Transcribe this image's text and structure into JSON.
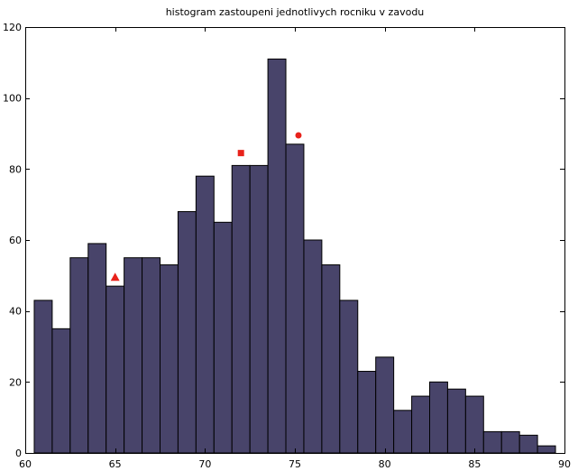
{
  "chart_data": {
    "type": "bar",
    "title": "histogram zastoupeni jednotlivych rocniku v zavodu",
    "xlabel": "",
    "ylabel": "",
    "xlim": [
      60,
      90
    ],
    "ylim": [
      0,
      120
    ],
    "xticks": [
      60,
      65,
      70,
      75,
      80,
      85,
      90
    ],
    "yticks": [
      0,
      20,
      40,
      60,
      80,
      100,
      120
    ],
    "grid": false,
    "bin_start": 60.5,
    "bin_width": 1,
    "bins": [
      {
        "from": 60.5,
        "to": 61.5,
        "value": 43
      },
      {
        "from": 61.5,
        "to": 62.5,
        "value": 35
      },
      {
        "from": 62.5,
        "to": 63.5,
        "value": 55
      },
      {
        "from": 63.5,
        "to": 64.5,
        "value": 59
      },
      {
        "from": 64.5,
        "to": 65.5,
        "value": 47
      },
      {
        "from": 65.5,
        "to": 66.5,
        "value": 55
      },
      {
        "from": 66.5,
        "to": 67.5,
        "value": 55
      },
      {
        "from": 67.5,
        "to": 68.5,
        "value": 53
      },
      {
        "from": 68.5,
        "to": 69.5,
        "value": 68
      },
      {
        "from": 69.5,
        "to": 70.5,
        "value": 78
      },
      {
        "from": 70.5,
        "to": 71.5,
        "value": 65
      },
      {
        "from": 71.5,
        "to": 72.5,
        "value": 81
      },
      {
        "from": 72.5,
        "to": 73.5,
        "value": 81
      },
      {
        "from": 73.5,
        "to": 74.5,
        "value": 111
      },
      {
        "from": 74.5,
        "to": 75.5,
        "value": 87
      },
      {
        "from": 75.5,
        "to": 76.5,
        "value": 60
      },
      {
        "from": 76.5,
        "to": 77.5,
        "value": 53
      },
      {
        "from": 77.5,
        "to": 78.5,
        "value": 43
      },
      {
        "from": 78.5,
        "to": 79.5,
        "value": 23
      },
      {
        "from": 79.5,
        "to": 80.5,
        "value": 27
      },
      {
        "from": 80.5,
        "to": 81.5,
        "value": 12
      },
      {
        "from": 81.5,
        "to": 82.5,
        "value": 16
      },
      {
        "from": 82.5,
        "to": 83.5,
        "value": 20
      },
      {
        "from": 83.5,
        "to": 84.5,
        "value": 18
      },
      {
        "from": 84.5,
        "to": 85.5,
        "value": 16
      },
      {
        "from": 85.5,
        "to": 86.5,
        "value": 6
      },
      {
        "from": 86.5,
        "to": 87.5,
        "value": 6
      },
      {
        "from": 87.5,
        "to": 88.5,
        "value": 5
      },
      {
        "from": 88.5,
        "to": 89.5,
        "value": 2
      }
    ],
    "bar_color": "#48446a",
    "markers": [
      {
        "shape": "triangle",
        "x": 65,
        "y": 49.5,
        "color": "#e8221b"
      },
      {
        "shape": "square",
        "x": 72,
        "y": 84.5,
        "color": "#e8221b"
      },
      {
        "shape": "circle",
        "x": 75.2,
        "y": 89.5,
        "color": "#e8221b"
      }
    ]
  }
}
